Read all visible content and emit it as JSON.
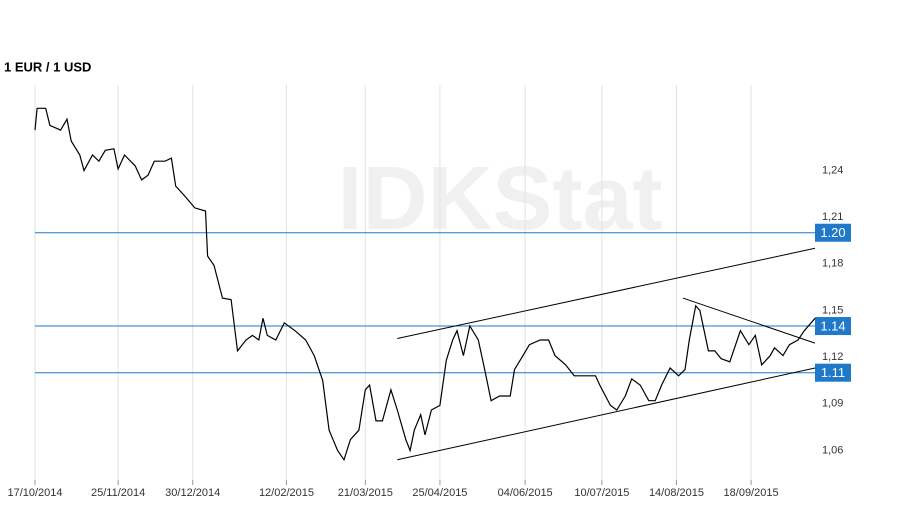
{
  "chart_data": {
    "type": "line",
    "title": "1 EUR / 1 USD",
    "watermark": "IDKStat",
    "xlim": [
      "17/10/2014",
      "18/10/2015"
    ],
    "xticks": [
      "17/10/2014",
      "25/11/2014",
      "30/12/2014",
      "12/02/2015",
      "21/03/2015",
      "25/04/2015",
      "04/06/2015",
      "10/07/2015",
      "14/08/2015",
      "18/09/2015"
    ],
    "ylim": [
      1.041,
      1.295
    ],
    "yticks": [
      {
        "value": 1.06,
        "label": "1,06"
      },
      {
        "value": 1.09,
        "label": "1,09"
      },
      {
        "value": 1.12,
        "label": "1,12"
      },
      {
        "value": 1.15,
        "label": "1,15"
      },
      {
        "value": 1.18,
        "label": "1,18"
      },
      {
        "value": 1.21,
        "label": "1,21"
      },
      {
        "value": 1.24,
        "label": "1,24"
      }
    ],
    "grid": true,
    "series": [
      {
        "color": "#000000",
        "x": [
          "17/10/2014",
          "18/10/2014",
          "22/10/2014",
          "24/10/2014",
          "29/10/2014",
          "01/11/2014",
          "03/11/2014",
          "07/11/2014",
          "09/11/2014",
          "13/11/2014",
          "16/11/2014",
          "19/11/2014",
          "23/11/2014",
          "25/11/2014",
          "28/11/2014",
          "03/12/2014",
          "06/12/2014",
          "09/12/2014",
          "12/12/2014",
          "17/12/2014",
          "20/12/2014",
          "22/12/2014",
          "26/12/2014",
          "31/12/2014",
          "05/01/2015",
          "06/01/2015",
          "09/01/2015",
          "13/01/2015",
          "17/01/2015",
          "20/01/2015",
          "24/01/2015",
          "27/01/2015",
          "30/01/2015",
          "01/02/2015",
          "03/02/2015",
          "07/02/2015",
          "11/02/2015",
          "16/02/2015",
          "21/02/2015",
          "25/02/2015",
          "01/03/2015",
          "04/03/2015",
          "08/03/2015",
          "11/03/2015",
          "14/03/2015",
          "18/03/2015",
          "21/03/2015",
          "23/03/2015",
          "26/03/2015",
          "29/03/2015",
          "02/04/2015",
          "05/04/2015",
          "09/04/2015",
          "11/04/2015",
          "13/04/2015",
          "16/04/2015",
          "18/04/2015",
          "21/04/2015",
          "25/04/2015",
          "28/04/2015",
          "01/05/2015",
          "03/05/2015",
          "06/05/2015",
          "09/05/2015",
          "13/05/2015",
          "16/05/2015",
          "19/05/2015",
          "23/05/2015",
          "28/05/2015",
          "30/05/2015",
          "03/06/2015",
          "06/06/2015",
          "11/06/2015",
          "15/06/2015",
          "18/06/2015",
          "23/06/2015",
          "27/06/2015",
          "02/07/2015",
          "07/07/2015",
          "09/07/2015",
          "14/07/2015",
          "17/07/2015",
          "21/07/2015",
          "24/07/2015",
          "28/07/2015",
          "01/08/2015",
          "04/08/2015",
          "07/08/2015",
          "11/08/2015",
          "15/08/2015",
          "18/08/2015",
          "20/08/2015",
          "23/08/2015",
          "25/08/2015",
          "29/08/2015",
          "01/09/2015",
          "04/09/2015",
          "08/09/2015",
          "13/09/2015",
          "17/09/2015",
          "20/09/2015",
          "23/09/2015",
          "27/09/2015",
          "29/09/2015",
          "03/10/2015",
          "06/10/2015",
          "10/10/2015",
          "13/10/2015",
          "18/10/2015"
        ],
        "values": [
          1.266,
          1.28,
          1.28,
          1.269,
          1.266,
          1.273,
          1.259,
          1.25,
          1.24,
          1.25,
          1.246,
          1.253,
          1.254,
          1.241,
          1.25,
          1.243,
          1.234,
          1.237,
          1.246,
          1.246,
          1.248,
          1.23,
          1.224,
          1.216,
          1.214,
          1.185,
          1.179,
          1.158,
          1.157,
          1.124,
          1.131,
          1.134,
          1.131,
          1.145,
          1.134,
          1.131,
          1.142,
          1.137,
          1.131,
          1.121,
          1.105,
          1.073,
          1.06,
          1.054,
          1.067,
          1.073,
          1.099,
          1.102,
          1.079,
          1.079,
          1.099,
          1.086,
          1.067,
          1.06,
          1.073,
          1.083,
          1.07,
          1.086,
          1.089,
          1.118,
          1.131,
          1.137,
          1.121,
          1.14,
          1.131,
          1.112,
          1.092,
          1.095,
          1.095,
          1.112,
          1.121,
          1.128,
          1.131,
          1.131,
          1.121,
          1.115,
          1.108,
          1.108,
          1.108,
          1.102,
          1.089,
          1.086,
          1.095,
          1.106,
          1.102,
          1.092,
          1.092,
          1.102,
          1.113,
          1.108,
          1.112,
          1.131,
          1.153,
          1.15,
          1.124,
          1.124,
          1.119,
          1.117,
          1.137,
          1.128,
          1.134,
          1.115,
          1.121,
          1.126,
          1.121,
          1.128,
          1.131,
          1.137,
          1.145
        ]
      }
    ],
    "levels": [
      {
        "value": 1.2,
        "label": "1.20",
        "color": "#1f78c8"
      },
      {
        "value": 1.14,
        "label": "1.14",
        "color": "#1f78c8"
      },
      {
        "value": 1.11,
        "label": "1.11",
        "color": "#1f78c8"
      }
    ],
    "trendlines": [
      {
        "x": [
          "05/04/2015",
          "18/10/2015"
        ],
        "values": [
          1.132,
          1.19
        ]
      },
      {
        "x": [
          "05/04/2015",
          "18/10/2015"
        ],
        "values": [
          1.054,
          1.113
        ]
      },
      {
        "x": [
          "17/08/2015",
          "18/10/2015"
        ],
        "values": [
          1.158,
          1.129
        ]
      }
    ]
  }
}
